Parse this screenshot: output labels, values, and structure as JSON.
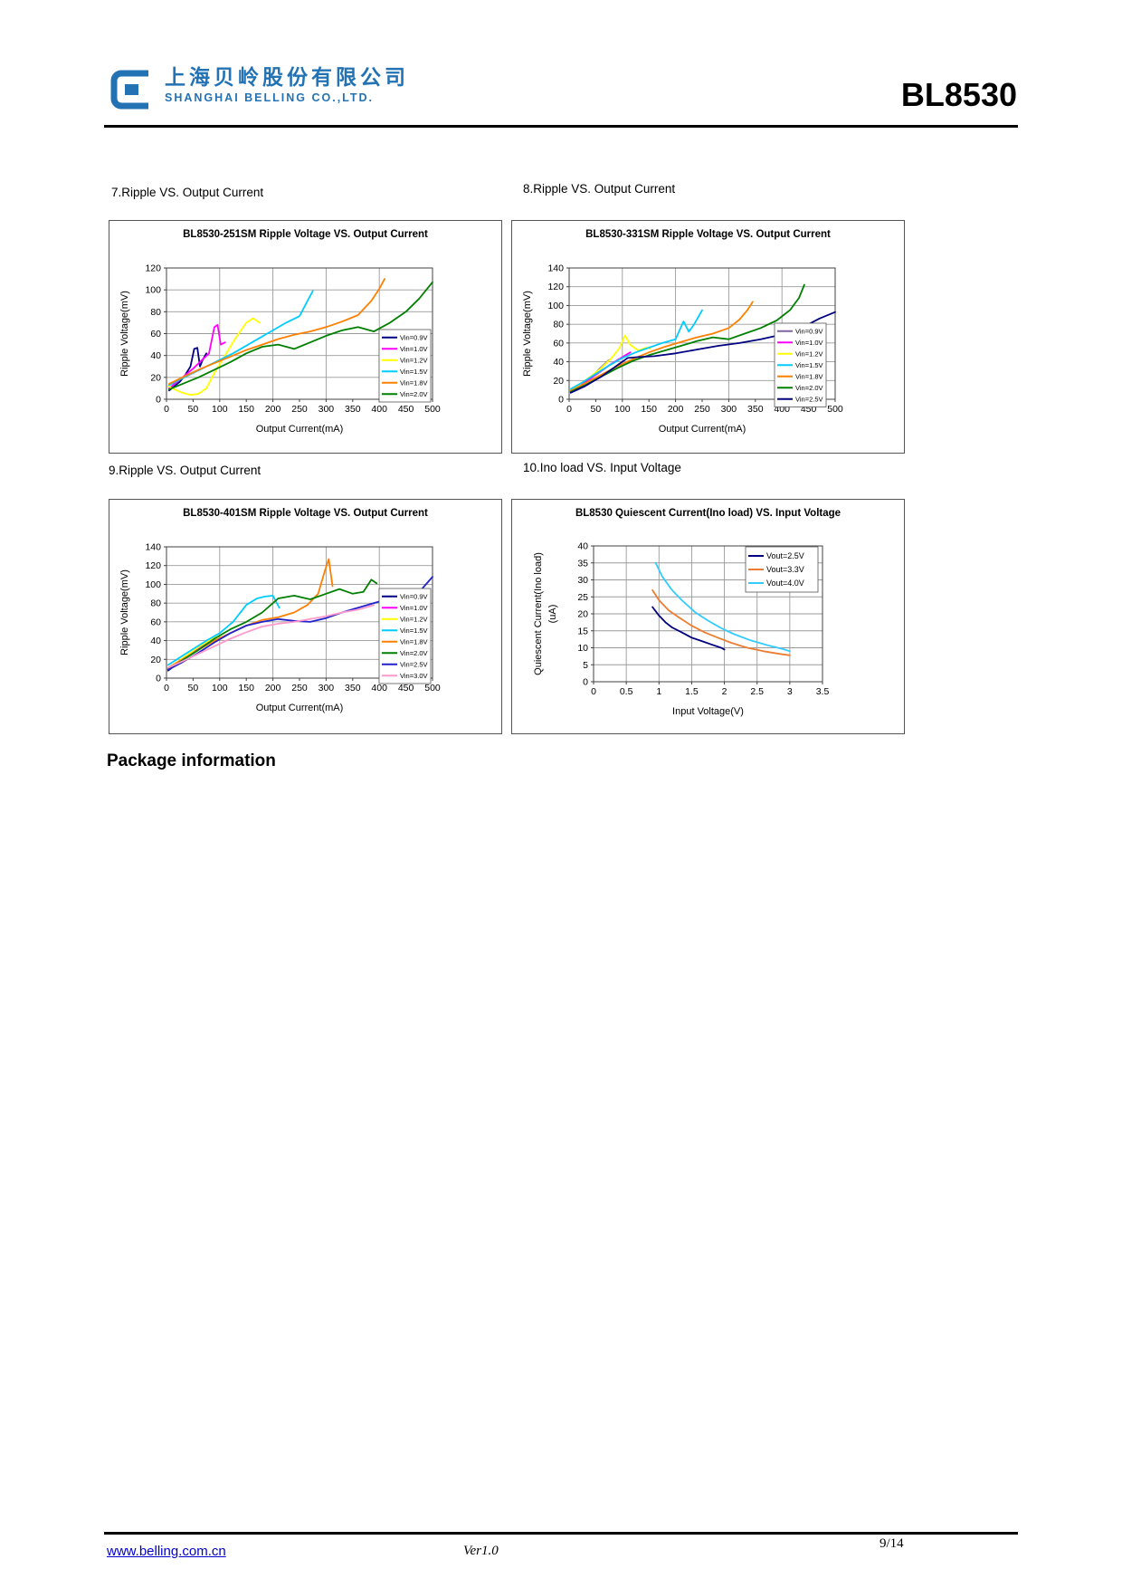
{
  "page": {
    "header": {
      "logo_text_cn": "上海贝岭股份有限公司",
      "logo_text_en": "SHANGHAI BELLING CO.,LTD.",
      "part_number": "BL8530"
    },
    "section_labels": [
      "7.Ripple VS. Output Current",
      "8.Ripple VS. Output Current",
      "9.Ripple VS. Output Current",
      "10.Ino load VS. Input Voltage"
    ],
    "package_heading": "Package information",
    "footer": {
      "website": "www.belling.com.cn",
      "version": "Ver1.0",
      "page_number": "9/14"
    },
    "brand_color": "#2373b4"
  },
  "chart_data": [
    {
      "type": "line",
      "title": "BL8530-251SM Ripple Voltage VS. Output Current",
      "xlabel": "Output Current(mA)",
      "ylabel": "Ripple Voltage(mV)",
      "xlim": [
        0,
        500
      ],
      "ylim": [
        0,
        120
      ],
      "xtick": 50,
      "ytick": 20,
      "xgrid": 100,
      "ygrid": 20,
      "grid": true,
      "legend_position": "inside-right-lower",
      "series": [
        {
          "name": "Vin=0.9V",
          "color": "#000080",
          "x": [
            5,
            15,
            25,
            35,
            45,
            52,
            58,
            63,
            68,
            75
          ],
          "y": [
            8,
            12,
            16,
            22,
            30,
            46,
            47,
            30,
            36,
            42
          ]
        },
        {
          "name": "Vin=1.0V",
          "color": "#FF00FF",
          "x": [
            5,
            20,
            35,
            50,
            65,
            80,
            90,
            96,
            102,
            110
          ],
          "y": [
            10,
            16,
            22,
            28,
            35,
            42,
            66,
            68,
            50,
            52
          ]
        },
        {
          "name": "Vin=1.2V",
          "color": "#FFFF00",
          "x": [
            3,
            15,
            30,
            45,
            60,
            75,
            90,
            110,
            130,
            150,
            163,
            175
          ],
          "y": [
            12,
            9,
            6,
            4,
            5,
            10,
            24,
            40,
            56,
            70,
            74,
            70
          ]
        },
        {
          "name": "Vin=1.5V",
          "color": "#00CCFF",
          "x": [
            5,
            25,
            50,
            75,
            100,
            125,
            150,
            175,
            200,
            225,
            250,
            263,
            275
          ],
          "y": [
            13,
            18,
            24,
            30,
            36,
            42,
            49,
            56,
            63,
            70,
            76,
            88,
            99
          ]
        },
        {
          "name": "Vin=1.8V",
          "color": "#FF8000",
          "x": [
            5,
            30,
            60,
            90,
            120,
            150,
            180,
            210,
            240,
            270,
            300,
            330,
            360,
            385,
            400,
            410
          ],
          "y": [
            14,
            20,
            27,
            33,
            39,
            45,
            50,
            55,
            59,
            62,
            66,
            71,
            77,
            90,
            101,
            110
          ]
        },
        {
          "name": "Vin=2.0V",
          "color": "#008000",
          "x": [
            5,
            30,
            60,
            90,
            120,
            150,
            180,
            210,
            240,
            270,
            300,
            330,
            360,
            390,
            420,
            450,
            475,
            500
          ],
          "y": [
            9,
            14,
            20,
            27,
            34,
            42,
            48,
            50,
            46,
            52,
            58,
            63,
            66,
            62,
            70,
            80,
            92,
            107
          ]
        }
      ]
    },
    {
      "type": "line",
      "title": "BL8530-331SM Ripple Voltage VS. Output Current",
      "xlabel": "Output Current(mA)",
      "ylabel": "Ripple Voltage(mV)",
      "xlim": [
        0,
        500
      ],
      "ylim": [
        0,
        140
      ],
      "xtick": 50,
      "ytick": 20,
      "xgrid": 100,
      "ygrid": 20,
      "grid": true,
      "legend_position": "inside-right-lower",
      "series": [
        {
          "name": "Vin=0.9V",
          "color": "#8064A2",
          "x": [
            3,
            15,
            30,
            45,
            60,
            75
          ],
          "y": [
            7,
            12,
            18,
            26,
            34,
            42
          ]
        },
        {
          "name": "Vin=1.0V",
          "color": "#FF00FF",
          "x": [
            3,
            20,
            40,
            60,
            80,
            100,
            115
          ],
          "y": [
            9,
            15,
            22,
            30,
            38,
            45,
            50
          ]
        },
        {
          "name": "Vin=1.2V",
          "color": "#FFFF00",
          "x": [
            3,
            20,
            40,
            60,
            80,
            95,
            105,
            115,
            130,
            145,
            152
          ],
          "y": [
            10,
            16,
            24,
            33,
            44,
            55,
            68,
            58,
            52,
            55,
            54
          ]
        },
        {
          "name": "Vin=1.5V",
          "color": "#00CCFF",
          "x": [
            3,
            25,
            50,
            75,
            100,
            125,
            150,
            175,
            200,
            215,
            225,
            235,
            250
          ],
          "y": [
            11,
            18,
            27,
            36,
            44,
            50,
            55,
            60,
            64,
            83,
            72,
            80,
            95
          ]
        },
        {
          "name": "Vin=1.8V",
          "color": "#FF8000",
          "x": [
            3,
            30,
            60,
            90,
            120,
            150,
            180,
            210,
            240,
            270,
            300,
            320,
            335,
            345
          ],
          "y": [
            9,
            17,
            26,
            35,
            43,
            50,
            56,
            61,
            66,
            70,
            76,
            85,
            95,
            104
          ]
        },
        {
          "name": "Vin=2.0V",
          "color": "#008000",
          "x": [
            3,
            30,
            60,
            90,
            120,
            150,
            180,
            210,
            240,
            270,
            300,
            330,
            360,
            390,
            415,
            432,
            442
          ],
          "y": [
            8,
            15,
            24,
            33,
            41,
            47,
            52,
            57,
            62,
            66,
            64,
            70,
            76,
            84,
            95,
            108,
            122
          ]
        },
        {
          "name": "Vin=2.5V",
          "color": "#000080",
          "x": [
            3,
            30,
            60,
            90,
            110,
            130,
            160,
            200,
            240,
            280,
            320,
            360,
            400,
            440,
            470,
            500
          ],
          "y": [
            7,
            14,
            24,
            36,
            44,
            45,
            46,
            49,
            53,
            57,
            60,
            64,
            69,
            77,
            86,
            93
          ]
        }
      ]
    },
    {
      "type": "line",
      "title": "BL8530-401SM Ripple Voltage VS. Output Current",
      "xlabel": "Output Current(mA)",
      "ylabel": "Ripple Voltage(mV)",
      "xlim": [
        0,
        500
      ],
      "ylim": [
        0,
        140
      ],
      "xtick": 50,
      "ytick": 20,
      "xgrid": 100,
      "ygrid": 20,
      "grid": true,
      "legend_position": "inside-right-lower",
      "series": [
        {
          "name": "Vin=0.9V",
          "color": "#000080",
          "x": [
            3,
            15,
            30,
            45,
            60
          ],
          "y": [
            8,
            13,
            19,
            25,
            30
          ]
        },
        {
          "name": "Vin=1.0V",
          "color": "#FF00FF",
          "x": [
            3,
            20,
            40,
            60,
            78
          ],
          "y": [
            10,
            16,
            24,
            31,
            38
          ]
        },
        {
          "name": "Vin=1.2V",
          "color": "#FFFF00",
          "x": [
            3,
            20,
            40,
            60,
            80,
            92
          ],
          "y": [
            11,
            17,
            25,
            33,
            40,
            44
          ]
        },
        {
          "name": "Vin=1.5V",
          "color": "#00CCFF",
          "x": [
            3,
            25,
            50,
            75,
            100,
            125,
            150,
            170,
            185,
            200,
            212
          ],
          "y": [
            14,
            22,
            31,
            40,
            48,
            60,
            78,
            85,
            87,
            88,
            75
          ]
        },
        {
          "name": "Vin=1.8V",
          "color": "#FF8000",
          "x": [
            3,
            30,
            60,
            90,
            120,
            150,
            180,
            210,
            240,
            265,
            285,
            298,
            305,
            312
          ],
          "y": [
            11,
            20,
            30,
            40,
            48,
            56,
            62,
            65,
            70,
            78,
            90,
            115,
            127,
            98
          ]
        },
        {
          "name": "Vin=2.0V",
          "color": "#008000",
          "x": [
            3,
            30,
            60,
            90,
            120,
            150,
            180,
            210,
            240,
            270,
            300,
            325,
            350,
            370,
            385,
            395
          ],
          "y": [
            9,
            19,
            30,
            42,
            52,
            60,
            70,
            85,
            88,
            84,
            90,
            95,
            90,
            92,
            105,
            101
          ]
        },
        {
          "name": "Vin=2.5V",
          "color": "#2222CC",
          "x": [
            3,
            30,
            60,
            90,
            120,
            150,
            180,
            210,
            240,
            270,
            300,
            330,
            360,
            390,
            420,
            450,
            480,
            500
          ],
          "y": [
            9,
            17,
            27,
            38,
            48,
            56,
            60,
            63,
            61,
            60,
            64,
            70,
            75,
            80,
            85,
            88,
            95,
            108
          ]
        },
        {
          "name": "Vin=3.0V",
          "color": "#FF99CC",
          "x": [
            3,
            30,
            60,
            90,
            120,
            150,
            180,
            210,
            240,
            270,
            300,
            330,
            360,
            390
          ],
          "y": [
            11,
            18,
            26,
            34,
            42,
            49,
            55,
            58,
            60,
            63,
            66,
            70,
            73,
            78
          ]
        }
      ]
    },
    {
      "type": "line",
      "title": "BL8530 Quiescent Current(Ino load) VS. Input Voltage",
      "xlabel": "Input Voltage(V)",
      "ylabel": "Quiescent Current(Ino load)",
      "ylabel2": "(uA)",
      "xlim": [
        0,
        3.5
      ],
      "ylim": [
        0,
        40
      ],
      "xtick": 0.5,
      "ytick": 5,
      "xgrid": 0.5,
      "ygrid": 5,
      "grid": true,
      "legend_position": "inside-top-right",
      "series": [
        {
          "name": "Vout=2.5V",
          "color": "#000080",
          "x": [
            0.9,
            1.0,
            1.1,
            1.2,
            1.35,
            1.5,
            1.65,
            1.8,
            1.95,
            2.0
          ],
          "y": [
            22,
            19.5,
            17.5,
            16,
            14.5,
            13,
            12,
            11,
            10,
            9.5
          ]
        },
        {
          "name": "Vout=3.3V",
          "color": "#ED7D31",
          "x": [
            0.9,
            1.0,
            1.15,
            1.3,
            1.5,
            1.7,
            1.9,
            2.1,
            2.35,
            2.6,
            2.85,
            3.0
          ],
          "y": [
            27,
            24,
            21,
            19,
            16.5,
            14.5,
            13,
            11.5,
            10,
            9,
            8.2,
            7.8
          ]
        },
        {
          "name": "Vout=4.0V",
          "color": "#33CCFF",
          "x": [
            0.95,
            1.05,
            1.2,
            1.35,
            1.55,
            1.75,
            1.95,
            2.15,
            2.4,
            2.65,
            2.9,
            3.0
          ],
          "y": [
            35,
            31,
            27,
            24,
            20.5,
            18,
            15.8,
            14,
            12.2,
            10.8,
            9.6,
            9
          ]
        }
      ]
    }
  ]
}
